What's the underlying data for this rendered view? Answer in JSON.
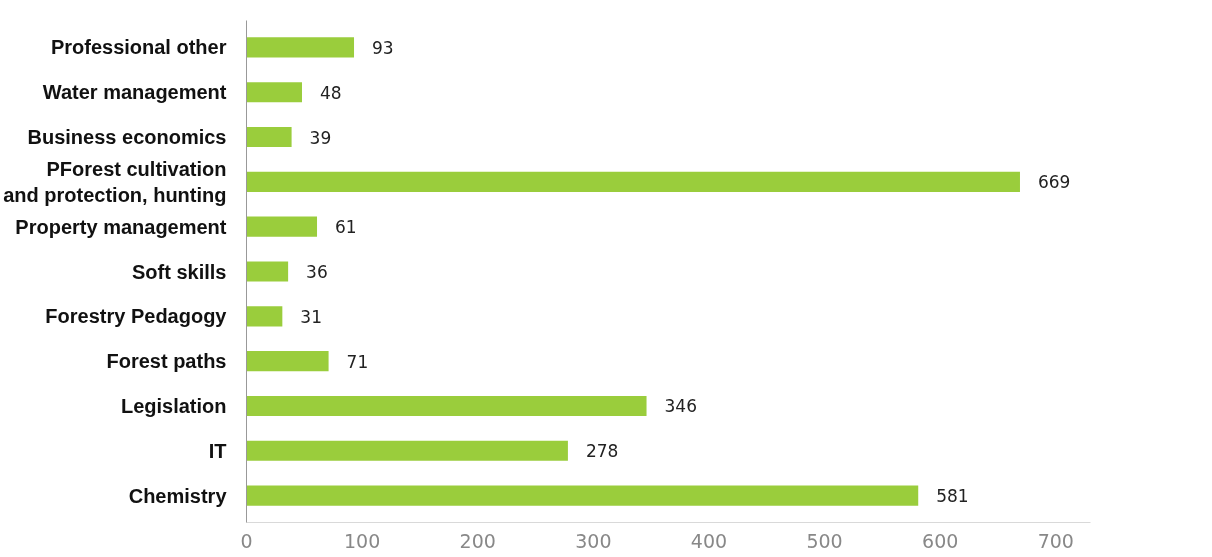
{
  "chart_data": {
    "type": "bar",
    "orientation": "horizontal",
    "categories": [
      "Professional other",
      "Water management",
      "Business economics",
      "PForest cultivation\nand protection, hunting",
      "Property management",
      "Soft skills",
      "Forestry Pedagogy",
      "Forest paths",
      "Legislation",
      "IT",
      "Chemistry"
    ],
    "values": [
      93,
      48,
      39,
      669,
      61,
      36,
      31,
      71,
      346,
      278,
      581
    ],
    "color": "#9acd3c",
    "data_labels": true,
    "grid": false,
    "legend": false,
    "xlim": [
      0,
      730
    ],
    "xticks": [
      0,
      100,
      200,
      300,
      400,
      500,
      600,
      700
    ]
  }
}
